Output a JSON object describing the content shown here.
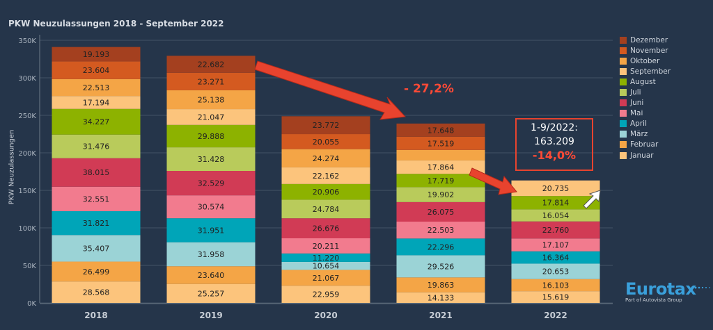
{
  "chart_data": {
    "type": "bar",
    "stacked": true,
    "title": "PKW Neuzulassungen 2018 - September 2022",
    "xlabel": "",
    "ylabel": "PKW Neuzulassungen",
    "ylim": [
      0,
      350000
    ],
    "yticks": [
      0,
      50000,
      100000,
      150000,
      200000,
      250000,
      300000,
      350000
    ],
    "ytick_labels": [
      "0K",
      "50K",
      "100K",
      "150K",
      "200K",
      "250K",
      "300K",
      "350K"
    ],
    "categories": [
      "2018",
      "2019",
      "2020",
      "2021",
      "2022"
    ],
    "series": [
      {
        "name": "Januar",
        "color": "#fcc47c",
        "values": [
          28568,
          25257,
          22959,
          14133,
          15619
        ],
        "labels": [
          "28.568",
          "25.257",
          "22.959",
          "14.133",
          "15.619"
        ]
      },
      {
        "name": "Februar",
        "color": "#f4a546",
        "values": [
          26499,
          23640,
          21067,
          19863,
          16103
        ],
        "labels": [
          "26.499",
          "23.640",
          "21.067",
          "19.863",
          "16.103"
        ]
      },
      {
        "name": "März",
        "color": "#9bd3d6",
        "values": [
          35407,
          31958,
          10654,
          29526,
          20653
        ],
        "labels": [
          "35.407",
          "31.958",
          "10.654",
          "29.526",
          "20.653"
        ]
      },
      {
        "name": "April",
        "color": "#00a5b8",
        "values": [
          31821,
          31951,
          11220,
          22296,
          16364
        ],
        "labels": [
          "31.821",
          "31.951",
          "11.220",
          "22.296",
          "16.364"
        ]
      },
      {
        "name": "Mai",
        "color": "#f27b8e",
        "values": [
          32551,
          30574,
          20211,
          22503,
          17107
        ],
        "labels": [
          "32.551",
          "30.574",
          "20.211",
          "22.503",
          "17.107"
        ]
      },
      {
        "name": "Juni",
        "color": "#d13b55",
        "values": [
          38015,
          32529,
          26676,
          26075,
          22760
        ],
        "labels": [
          "38.015",
          "32.529",
          "26.676",
          "26.075",
          "22.760"
        ]
      },
      {
        "name": "Juli",
        "color": "#b9cb5b",
        "values": [
          31476,
          31428,
          24784,
          19902,
          16054
        ],
        "labels": [
          "31.476",
          "31.428",
          "24.784",
          "19.902",
          "16.054"
        ]
      },
      {
        "name": "August",
        "color": "#8db200",
        "values": [
          34227,
          29888,
          20906,
          17719,
          17814
        ],
        "labels": [
          "34.227",
          "29.888",
          "20.906",
          "17.719",
          "17.814"
        ]
      },
      {
        "name": "September",
        "color": "#fcc47c",
        "values": [
          17194,
          21047,
          22162,
          17864,
          20735
        ],
        "labels": [
          "17.194",
          "21.047",
          "22.162",
          "17.864",
          "20.735"
        ]
      },
      {
        "name": "Oktober",
        "color": "#f4a546",
        "values": [
          22513,
          25138,
          24274,
          14000,
          null
        ],
        "labels": [
          "22.513",
          "25.138",
          "24.274",
          "",
          ""
        ]
      },
      {
        "name": "November",
        "color": "#d45a20",
        "values": [
          23604,
          23271,
          20055,
          17519,
          null
        ],
        "labels": [
          "23.604",
          "23.271",
          "20.055",
          "17.519",
          ""
        ]
      },
      {
        "name": "Dezember",
        "color": "#a4401f",
        "values": [
          19193,
          22682,
          23772,
          17648,
          null
        ],
        "labels": [
          "19.193",
          "22.682",
          "23.772",
          "17.648",
          ""
        ]
      }
    ],
    "legend_order": [
      "Dezember",
      "November",
      "Oktober",
      "September",
      "August",
      "Juli",
      "Juni",
      "Mai",
      "April",
      "März",
      "Februar",
      "Januar"
    ],
    "legend_position": "right",
    "grid": true,
    "annotations": {
      "decline_2021": "- 27,2%",
      "box_line1": "1-9/2022:",
      "box_line2": "163.209",
      "box_pct": "-14,0%"
    }
  },
  "logo": {
    "brand": "Eurotax",
    "sub": "Part of Autovista Group"
  },
  "colors": {
    "background": "#25354a",
    "accent": "#e8432e"
  }
}
